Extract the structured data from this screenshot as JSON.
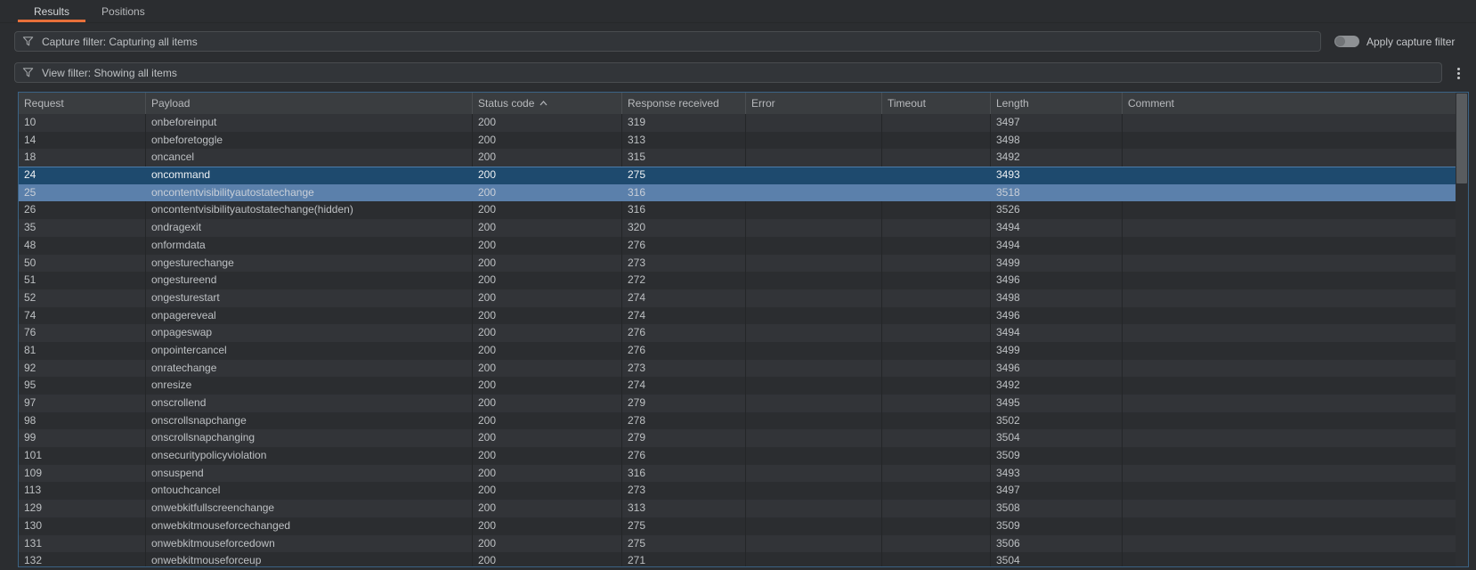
{
  "tabs": {
    "results": "Results",
    "positions": "Positions"
  },
  "capture_filter": {
    "label": "Capture filter: Capturing all items",
    "toggle_label": "Apply capture filter",
    "toggle_state": "off"
  },
  "view_filter": {
    "label": "View filter: Showing all items"
  },
  "colors": {
    "accent_orange": "#e8703a",
    "selection_primary": "#1e4a6e",
    "selection_secondary": "#5b80ab",
    "table_focus_border": "#3b6385"
  },
  "table": {
    "columns": [
      "Request",
      "Payload",
      "Status code",
      "Response received",
      "Error",
      "Timeout",
      "Length",
      "Comment"
    ],
    "sorted_column": "Status code",
    "sort_direction": "ascending",
    "rows": [
      {
        "request": "10",
        "payload": "onbeforeinput",
        "status_code": "200",
        "response_received": "319",
        "error": "",
        "timeout": "",
        "length": "3497",
        "comment": "",
        "selection": "none"
      },
      {
        "request": "14",
        "payload": "onbeforetoggle",
        "status_code": "200",
        "response_received": "313",
        "error": "",
        "timeout": "",
        "length": "3498",
        "comment": "",
        "selection": "none"
      },
      {
        "request": "18",
        "payload": "oncancel",
        "status_code": "200",
        "response_received": "315",
        "error": "",
        "timeout": "",
        "length": "3492",
        "comment": "",
        "selection": "none"
      },
      {
        "request": "24",
        "payload": "oncommand",
        "status_code": "200",
        "response_received": "275",
        "error": "",
        "timeout": "",
        "length": "3493",
        "comment": "",
        "selection": "primary"
      },
      {
        "request": "25",
        "payload": "oncontentvisibilityautostatechange",
        "status_code": "200",
        "response_received": "316",
        "error": "",
        "timeout": "",
        "length": "3518",
        "comment": "",
        "selection": "secondary"
      },
      {
        "request": "26",
        "payload": "oncontentvisibilityautostatechange(hidden)",
        "status_code": "200",
        "response_received": "316",
        "error": "",
        "timeout": "",
        "length": "3526",
        "comment": "",
        "selection": "none"
      },
      {
        "request": "35",
        "payload": "ondragexit",
        "status_code": "200",
        "response_received": "320",
        "error": "",
        "timeout": "",
        "length": "3494",
        "comment": "",
        "selection": "none"
      },
      {
        "request": "48",
        "payload": "onformdata",
        "status_code": "200",
        "response_received": "276",
        "error": "",
        "timeout": "",
        "length": "3494",
        "comment": "",
        "selection": "none"
      },
      {
        "request": "50",
        "payload": "ongesturechange",
        "status_code": "200",
        "response_received": "273",
        "error": "",
        "timeout": "",
        "length": "3499",
        "comment": "",
        "selection": "none"
      },
      {
        "request": "51",
        "payload": "ongestureend",
        "status_code": "200",
        "response_received": "272",
        "error": "",
        "timeout": "",
        "length": "3496",
        "comment": "",
        "selection": "none"
      },
      {
        "request": "52",
        "payload": "ongesturestart",
        "status_code": "200",
        "response_received": "274",
        "error": "",
        "timeout": "",
        "length": "3498",
        "comment": "",
        "selection": "none"
      },
      {
        "request": "74",
        "payload": "onpagereveal",
        "status_code": "200",
        "response_received": "274",
        "error": "",
        "timeout": "",
        "length": "3496",
        "comment": "",
        "selection": "none"
      },
      {
        "request": "76",
        "payload": "onpageswap",
        "status_code": "200",
        "response_received": "276",
        "error": "",
        "timeout": "",
        "length": "3494",
        "comment": "",
        "selection": "none"
      },
      {
        "request": "81",
        "payload": "onpointercancel",
        "status_code": "200",
        "response_received": "276",
        "error": "",
        "timeout": "",
        "length": "3499",
        "comment": "",
        "selection": "none"
      },
      {
        "request": "92",
        "payload": "onratechange",
        "status_code": "200",
        "response_received": "273",
        "error": "",
        "timeout": "",
        "length": "3496",
        "comment": "",
        "selection": "none"
      },
      {
        "request": "95",
        "payload": "onresize",
        "status_code": "200",
        "response_received": "274",
        "error": "",
        "timeout": "",
        "length": "3492",
        "comment": "",
        "selection": "none"
      },
      {
        "request": "97",
        "payload": "onscrollend",
        "status_code": "200",
        "response_received": "279",
        "error": "",
        "timeout": "",
        "length": "3495",
        "comment": "",
        "selection": "none"
      },
      {
        "request": "98",
        "payload": "onscrollsnapchange",
        "status_code": "200",
        "response_received": "278",
        "error": "",
        "timeout": "",
        "length": "3502",
        "comment": "",
        "selection": "none"
      },
      {
        "request": "99",
        "payload": "onscrollsnapchanging",
        "status_code": "200",
        "response_received": "279",
        "error": "",
        "timeout": "",
        "length": "3504",
        "comment": "",
        "selection": "none"
      },
      {
        "request": "101",
        "payload": "onsecuritypolicyviolation",
        "status_code": "200",
        "response_received": "276",
        "error": "",
        "timeout": "",
        "length": "3509",
        "comment": "",
        "selection": "none"
      },
      {
        "request": "109",
        "payload": "onsuspend",
        "status_code": "200",
        "response_received": "316",
        "error": "",
        "timeout": "",
        "length": "3493",
        "comment": "",
        "selection": "none"
      },
      {
        "request": "113",
        "payload": "ontouchcancel",
        "status_code": "200",
        "response_received": "273",
        "error": "",
        "timeout": "",
        "length": "3497",
        "comment": "",
        "selection": "none"
      },
      {
        "request": "129",
        "payload": "onwebkitfullscreenchange",
        "status_code": "200",
        "response_received": "313",
        "error": "",
        "timeout": "",
        "length": "3508",
        "comment": "",
        "selection": "none"
      },
      {
        "request": "130",
        "payload": "onwebkitmouseforcechanged",
        "status_code": "200",
        "response_received": "275",
        "error": "",
        "timeout": "",
        "length": "3509",
        "comment": "",
        "selection": "none"
      },
      {
        "request": "131",
        "payload": "onwebkitmouseforcedown",
        "status_code": "200",
        "response_received": "275",
        "error": "",
        "timeout": "",
        "length": "3506",
        "comment": "",
        "selection": "none"
      },
      {
        "request": "132",
        "payload": "onwebkitmouseforceup",
        "status_code": "200",
        "response_received": "271",
        "error": "",
        "timeout": "",
        "length": "3504",
        "comment": "",
        "selection": "none"
      }
    ]
  }
}
